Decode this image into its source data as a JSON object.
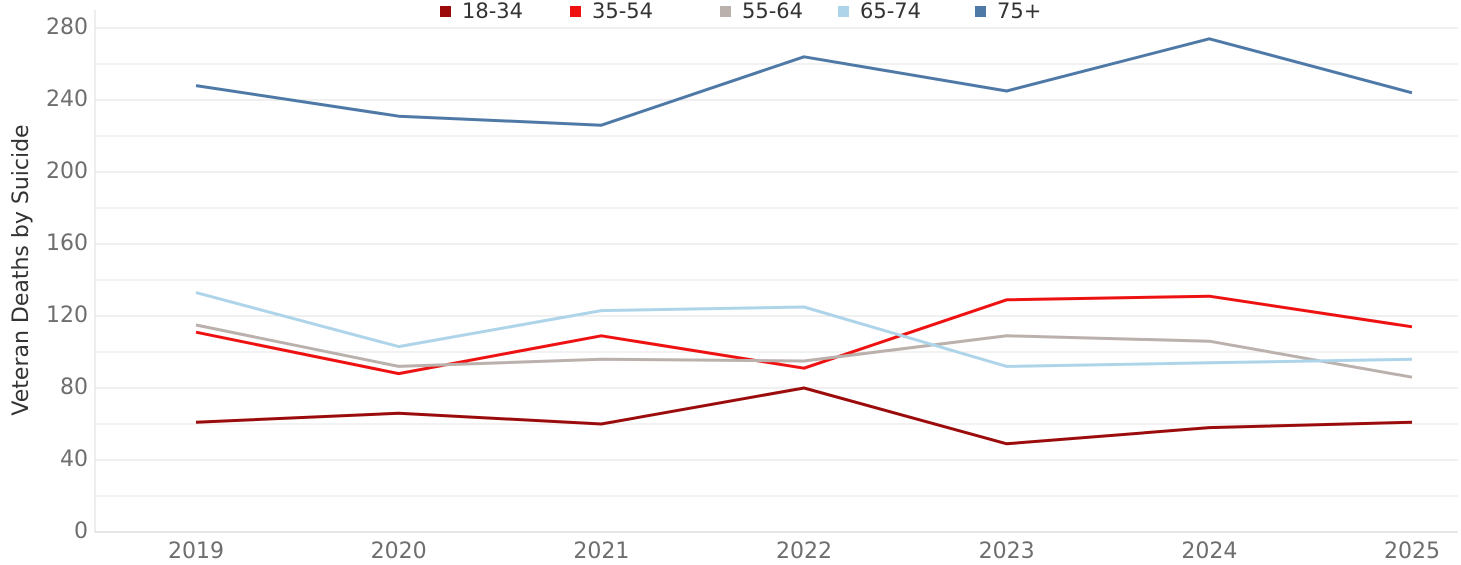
{
  "chart_data": {
    "type": "line",
    "y_label": "Veteran Deaths by Suicide",
    "categories": [
      "2019",
      "2020",
      "2021",
      "2022",
      "2023",
      "2024",
      "2025"
    ],
    "series": [
      {
        "name": "18-34",
        "color": "#9b0b0b",
        "values": [
          61,
          66,
          60,
          80,
          49,
          58,
          61
        ]
      },
      {
        "name": "35-54",
        "color": "#ee1111",
        "values": [
          111,
          88,
          109,
          91,
          129,
          131,
          114
        ]
      },
      {
        "name": "55-64",
        "color": "#bab0ac",
        "values": [
          115,
          92,
          96,
          95,
          109,
          106,
          86
        ]
      },
      {
        "name": "65-74",
        "color": "#aed4ea",
        "values": [
          133,
          103,
          123,
          125,
          92,
          94,
          96
        ]
      },
      {
        "name": "75+",
        "color": "#4e79a7",
        "values": [
          248,
          231,
          226,
          264,
          245,
          274,
          244
        ]
      }
    ],
    "ylim": [
      0,
      290
    ],
    "yticks": [
      0,
      40,
      80,
      120,
      160,
      200,
      240,
      280
    ],
    "minor_yticks": [
      20,
      60,
      100,
      140,
      180,
      220,
      260
    ],
    "grid": true,
    "legend": "top"
  }
}
